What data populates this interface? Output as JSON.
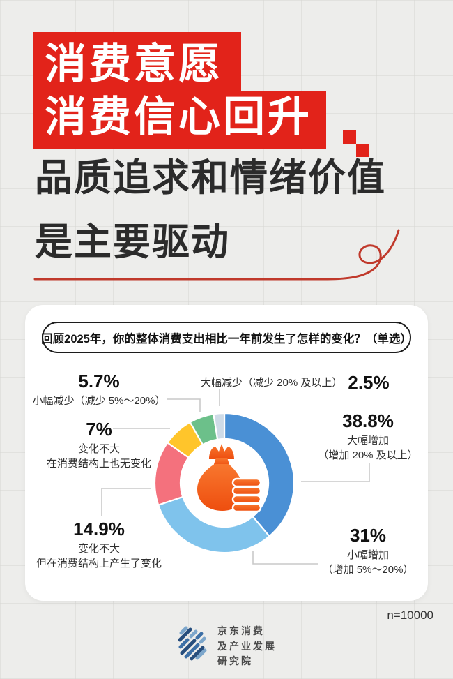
{
  "banner": {
    "line1": "消费意愿",
    "line2": "消费信心回升"
  },
  "headline": {
    "line1": "品质追求和情绪价值",
    "line2": "是主要驱动"
  },
  "survey": {
    "question": "回顾2025年，你的整体消费支出相比一年前发生了怎样的变化？（单选）",
    "sample_size": "n=10000"
  },
  "chart_data": {
    "type": "pie",
    "donut": true,
    "title": "回顾2025年，你的整体消费支出相比一年前发生了怎样的变化？（单选）",
    "start_angle_deg": 0,
    "direction": "clockwise",
    "units": "%",
    "slices": [
      {
        "name": "大幅增加（增加 20% 及以上）",
        "value": 38.8,
        "color": "#4A90D5"
      },
      {
        "name": "小幅增加（增加 5%～20%）",
        "value": 31,
        "color": "#7FC3EC"
      },
      {
        "name": "变化不大，但在消费结构上产生了变化",
        "value": 14.9,
        "color": "#F4717D"
      },
      {
        "name": "变化不大，在消费结构上也无变化",
        "value": 7,
        "color": "#FFC52B"
      },
      {
        "name": "小幅减少（减少 5%～20%）",
        "value": 5.7,
        "color": "#6CC08A"
      },
      {
        "name": "大幅减少（减少 20% 及以上）",
        "value": 2.5,
        "color": "#CEDBE7"
      }
    ],
    "center_icon": "money-bag-with-coins",
    "legend_position": "callout-labels",
    "sample_note": "n=10000"
  },
  "labels": {
    "minor_decrease": {
      "pct": "5.7%",
      "desc": "小幅减少（减少 5%～20%）"
    },
    "major_decrease": {
      "desc": "大幅减少（减少 20% 及以上）",
      "pct": "2.5%"
    },
    "flat_no_structure_change": {
      "pct": "7%",
      "line1": "变化不大",
      "line2": "在消费结构上也无变化"
    },
    "major_increase": {
      "pct": "38.8%",
      "line1": "大幅增加",
      "line2": "（增加 20% 及以上）"
    },
    "flat_structure_change": {
      "pct": "14.9%",
      "line1": "变化不大",
      "line2": "但在消费结构上产生了变化"
    },
    "minor_increase": {
      "pct": "31%",
      "line1": "小幅增加",
      "line2": "（增加 5%～20%）"
    }
  },
  "footer": {
    "org": {
      "line1": "京东消费",
      "line2": "及产业发展",
      "line3": "研究院"
    }
  },
  "colors": {
    "brand_red": "#E2231A",
    "squiggle_red": "#C0392B",
    "icon_orange": "#F0561A"
  }
}
